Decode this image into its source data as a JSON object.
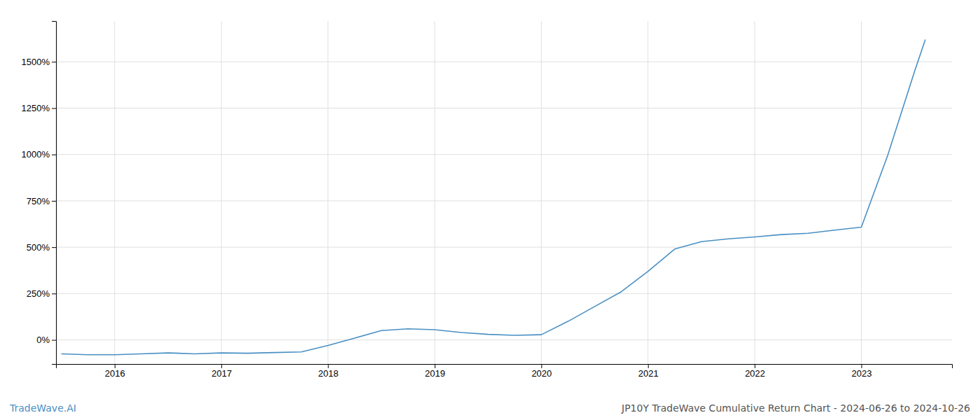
{
  "chart_data": {
    "type": "line",
    "title": "JP10Y TradeWave Cumulative Return Chart - 2024-06-26 to 2024-10-26",
    "annotations": [
      "TradeWave.AI"
    ],
    "color": "#4a90c4",
    "x": [
      2015.5,
      2015.75,
      2016.0,
      2016.25,
      2016.5,
      2016.75,
      2017.0,
      2017.25,
      2017.5,
      2017.75,
      2018.0,
      2018.25,
      2018.5,
      2018.75,
      2019.0,
      2019.25,
      2019.5,
      2019.75,
      2020.0,
      2020.25,
      2020.5,
      2020.75,
      2021.0,
      2021.25,
      2021.5,
      2021.75,
      2022.0,
      2022.25,
      2022.5,
      2022.75,
      2023.0,
      2023.25,
      2023.5,
      2023.6
    ],
    "values": [
      -75,
      -80,
      -80,
      -75,
      -70,
      -75,
      -70,
      -72,
      -68,
      -65,
      -30,
      10,
      50,
      60,
      55,
      40,
      30,
      25,
      28,
      100,
      180,
      260,
      370,
      490,
      530,
      545,
      555,
      568,
      575,
      592,
      608,
      1000,
      1450,
      1620
    ],
    "xlim": [
      2015.45,
      2023.85
    ],
    "ylim": [
      -130,
      1720
    ],
    "xticks": [
      2016,
      2017,
      2018,
      2019,
      2020,
      2021,
      2022,
      2023
    ],
    "yticks": [
      {
        "value": 0,
        "label": "0%"
      },
      {
        "value": 250,
        "label": "250%"
      },
      {
        "value": 500,
        "label": "500%"
      },
      {
        "value": 750,
        "label": "750%"
      },
      {
        "value": 1000,
        "label": "1000%"
      },
      {
        "value": 1250,
        "label": "1250%"
      },
      {
        "value": 1500,
        "label": "1500%"
      }
    ],
    "grid": true
  }
}
